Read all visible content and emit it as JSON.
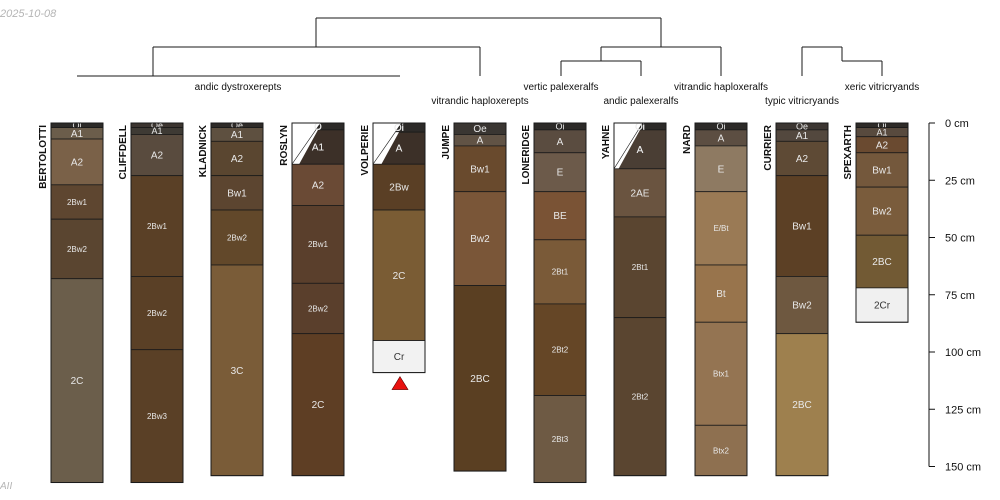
{
  "date_stamp": "2025-10-08",
  "footer_tag": "AII",
  "depth_axis": {
    "unit": "cm",
    "max_depth_cm": 150,
    "ticks": [
      {
        "value": 0,
        "label": "0 cm"
      },
      {
        "value": 25,
        "label": "25 cm"
      },
      {
        "value": 50,
        "label": "50 cm"
      },
      {
        "value": 75,
        "label": "75 cm"
      },
      {
        "value": 100,
        "label": "100 cm"
      },
      {
        "value": 125,
        "label": "125 cm"
      },
      {
        "value": 150,
        "label": "150 cm"
      }
    ]
  },
  "group_labels": [
    {
      "id": "andic-dystroxerepts",
      "text": "andic dystroxerepts"
    },
    {
      "id": "vitrandic-haploxerepts",
      "text": "vitrandic haploxerepts"
    },
    {
      "id": "vertic-palexeralfs",
      "text": "vertic palexeralfs"
    },
    {
      "id": "andic-palexeralfs",
      "text": "andic palexeralfs"
    },
    {
      "id": "vitrandic-haploxeralfs",
      "text": "vitrandic haploxeralfs"
    },
    {
      "id": "typic-vitricryands",
      "text": "typic vitricryands"
    },
    {
      "id": "xeric-vitricryands",
      "text": "xeric vitricryands"
    }
  ],
  "profiles": [
    {
      "name": "BERTOLOTTI",
      "bottom_cm": 157,
      "horizons": [
        {
          "name": "Oi",
          "top": 0,
          "bottom": 2,
          "color": "#2c2a28"
        },
        {
          "name": "A1",
          "top": 2,
          "bottom": 7,
          "color": "#6b5d4b"
        },
        {
          "name": "A2",
          "top": 7,
          "bottom": 27,
          "color": "#7a6148"
        },
        {
          "name": "2Bw1",
          "top": 27,
          "bottom": 42,
          "color": "#5e4630"
        },
        {
          "name": "2Bw2",
          "top": 42,
          "bottom": 68,
          "color": "#5a4530"
        },
        {
          "name": "2C",
          "top": 68,
          "bottom": 157,
          "color": "#6b5e4b"
        }
      ]
    },
    {
      "name": "CLIFFDELL",
      "bottom_cm": 157,
      "horizons": [
        {
          "name": "Oe",
          "top": 0,
          "bottom": 2,
          "color": "#3c3530"
        },
        {
          "name": "A1",
          "top": 2,
          "bottom": 5,
          "color": "#3e3a34"
        },
        {
          "name": "A2",
          "top": 5,
          "bottom": 23,
          "color": "#594b3e"
        },
        {
          "name": "2Bw1",
          "top": 23,
          "bottom": 67,
          "color": "#5a4026"
        },
        {
          "name": "2Bw2",
          "top": 67,
          "bottom": 99,
          "color": "#5a4026"
        },
        {
          "name": "2Bw3",
          "top": 99,
          "bottom": 157,
          "color": "#5a4026"
        }
      ]
    },
    {
      "name": "KLADNICK",
      "bottom_cm": 154,
      "horizons": [
        {
          "name": "Oe",
          "top": 0,
          "bottom": 2,
          "color": "#2e2b28"
        },
        {
          "name": "A1",
          "top": 2,
          "bottom": 8,
          "color": "#5e5040"
        },
        {
          "name": "A2",
          "top": 8,
          "bottom": 23,
          "color": "#5a4630"
        },
        {
          "name": "Bw1",
          "top": 23,
          "bottom": 38,
          "color": "#5c4530"
        },
        {
          "name": "2Bw2",
          "top": 38,
          "bottom": 62,
          "color": "#62482a"
        },
        {
          "name": "3C",
          "top": 62,
          "bottom": 154,
          "color": "#7a5c38"
        }
      ]
    },
    {
      "name": "ROSLYN",
      "bottom_cm": 154,
      "horizons": [
        {
          "name": "O",
          "top": 0,
          "bottom": 3,
          "color": "#2c2a28",
          "hatched": true
        },
        {
          "name": "A1",
          "top": 3,
          "bottom": 18,
          "color": "#3c3028",
          "hatched": true
        },
        {
          "name": "A2",
          "top": 18,
          "bottom": 36,
          "color": "#6a4a35"
        },
        {
          "name": "2Bw1",
          "top": 36,
          "bottom": 70,
          "color": "#5a3f2c"
        },
        {
          "name": "2Bw2",
          "top": 70,
          "bottom": 92,
          "color": "#5a3f2c"
        },
        {
          "name": "2C",
          "top": 92,
          "bottom": 154,
          "color": "#5e3e24"
        }
      ]
    },
    {
      "name": "VOLPERIE",
      "bottom_cm": 109,
      "truncated": true,
      "horizons": [
        {
          "name": "Oi",
          "top": 0,
          "bottom": 4,
          "color": "#2c2a28",
          "hatched": true
        },
        {
          "name": "A",
          "top": 4,
          "bottom": 18,
          "color": "#3c3028",
          "hatched": true
        },
        {
          "name": "2Bw",
          "top": 18,
          "bottom": 38,
          "color": "#5a3f25"
        },
        {
          "name": "2C",
          "top": 38,
          "bottom": 95,
          "color": "#7a5c34"
        },
        {
          "name": "Cr",
          "top": 95,
          "bottom": 109,
          "color": "#f2f2f2"
        }
      ]
    },
    {
      "name": "JUMPE",
      "bottom_cm": 152,
      "horizons": [
        {
          "name": "Oe",
          "top": 0,
          "bottom": 5,
          "color": "#3a3632"
        },
        {
          "name": "A",
          "top": 5,
          "bottom": 10,
          "color": "#615345"
        },
        {
          "name": "Bw1",
          "top": 10,
          "bottom": 30,
          "color": "#694a2d"
        },
        {
          "name": "Bw2",
          "top": 30,
          "bottom": 71,
          "color": "#7a5638"
        },
        {
          "name": "2BC",
          "top": 71,
          "bottom": 152,
          "color": "#5a3f22"
        }
      ]
    },
    {
      "name": "LONERIDGE",
      "bottom_cm": 157,
      "horizons": [
        {
          "name": "Oi",
          "top": 0,
          "bottom": 3,
          "color": "#2c2a28"
        },
        {
          "name": "A",
          "top": 3,
          "bottom": 13,
          "color": "#5a4c40"
        },
        {
          "name": "E",
          "top": 13,
          "bottom": 30,
          "color": "#6c5a4a"
        },
        {
          "name": "BE",
          "top": 30,
          "bottom": 51,
          "color": "#7a5335"
        },
        {
          "name": "2Bt1",
          "top": 51,
          "bottom": 79,
          "color": "#7a5a38"
        },
        {
          "name": "2Bt2",
          "top": 79,
          "bottom": 119,
          "color": "#654626"
        },
        {
          "name": "2Bt3",
          "top": 119,
          "bottom": 157,
          "color": "#6e5a44"
        }
      ]
    },
    {
      "name": "YAHNE",
      "bottom_cm": 154,
      "horizons": [
        {
          "name": "Oi",
          "top": 0,
          "bottom": 3,
          "color": "#2c2a28",
          "hatched": true
        },
        {
          "name": "A",
          "top": 3,
          "bottom": 20,
          "color": "#4a3e34",
          "hatched": true
        },
        {
          "name": "2AE",
          "top": 20,
          "bottom": 41,
          "color": "#6a5440"
        },
        {
          "name": "2Bt1",
          "top": 41,
          "bottom": 85,
          "color": "#5a4530"
        },
        {
          "name": "2Bt2",
          "top": 85,
          "bottom": 154,
          "color": "#5a4530"
        }
      ]
    },
    {
      "name": "NARD",
      "bottom_cm": 154,
      "horizons": [
        {
          "name": "Oi",
          "top": 0,
          "bottom": 3,
          "color": "#2c2a28"
        },
        {
          "name": "A",
          "top": 3,
          "bottom": 10,
          "color": "#5c4e42"
        },
        {
          "name": "E",
          "top": 10,
          "bottom": 30,
          "color": "#8e7a62"
        },
        {
          "name": "E/Bt",
          "top": 30,
          "bottom": 62,
          "color": "#9a7a55"
        },
        {
          "name": "Bt",
          "top": 62,
          "bottom": 87,
          "color": "#98744c"
        },
        {
          "name": "Btx1",
          "top": 87,
          "bottom": 132,
          "color": "#947452"
        },
        {
          "name": "Btx2",
          "top": 132,
          "bottom": 154,
          "color": "#8e7050"
        }
      ]
    },
    {
      "name": "CURRIER",
      "bottom_cm": 154,
      "horizons": [
        {
          "name": "Oe",
          "top": 0,
          "bottom": 3,
          "color": "#3c3632"
        },
        {
          "name": "A1",
          "top": 3,
          "bottom": 8,
          "color": "#53483e"
        },
        {
          "name": "A2",
          "top": 8,
          "bottom": 23,
          "color": "#5e4a35"
        },
        {
          "name": "Bw1",
          "top": 23,
          "bottom": 67,
          "color": "#5c4025"
        },
        {
          "name": "Bw2",
          "top": 67,
          "bottom": 92,
          "color": "#6e5840"
        },
        {
          "name": "2BC",
          "top": 92,
          "bottom": 154,
          "color": "#9e804e"
        }
      ]
    },
    {
      "name": "SPEXARTH",
      "bottom_cm": 87,
      "horizons": [
        {
          "name": "Oi",
          "top": 0,
          "bottom": 2,
          "color": "#2e2b28"
        },
        {
          "name": "A1",
          "top": 2,
          "bottom": 6,
          "color": "#584a3e"
        },
        {
          "name": "A2",
          "top": 6,
          "bottom": 13,
          "color": "#6a4a30"
        },
        {
          "name": "Bw1",
          "top": 13,
          "bottom": 28,
          "color": "#74583c"
        },
        {
          "name": "Bw2",
          "top": 28,
          "bottom": 49,
          "color": "#7a5c3c"
        },
        {
          "name": "2BC",
          "top": 49,
          "bottom": 72,
          "color": "#725a34"
        },
        {
          "name": "2Cr",
          "top": 72,
          "bottom": 87,
          "color": "#f0f0f0"
        }
      ]
    }
  ],
  "colors": {
    "outline": "#1a1a1a",
    "label_on_dark": "#e8e8e8",
    "label_on_light": "#333333",
    "truncation_marker": "#e8110f",
    "tree_line": "#1a1a1a"
  }
}
